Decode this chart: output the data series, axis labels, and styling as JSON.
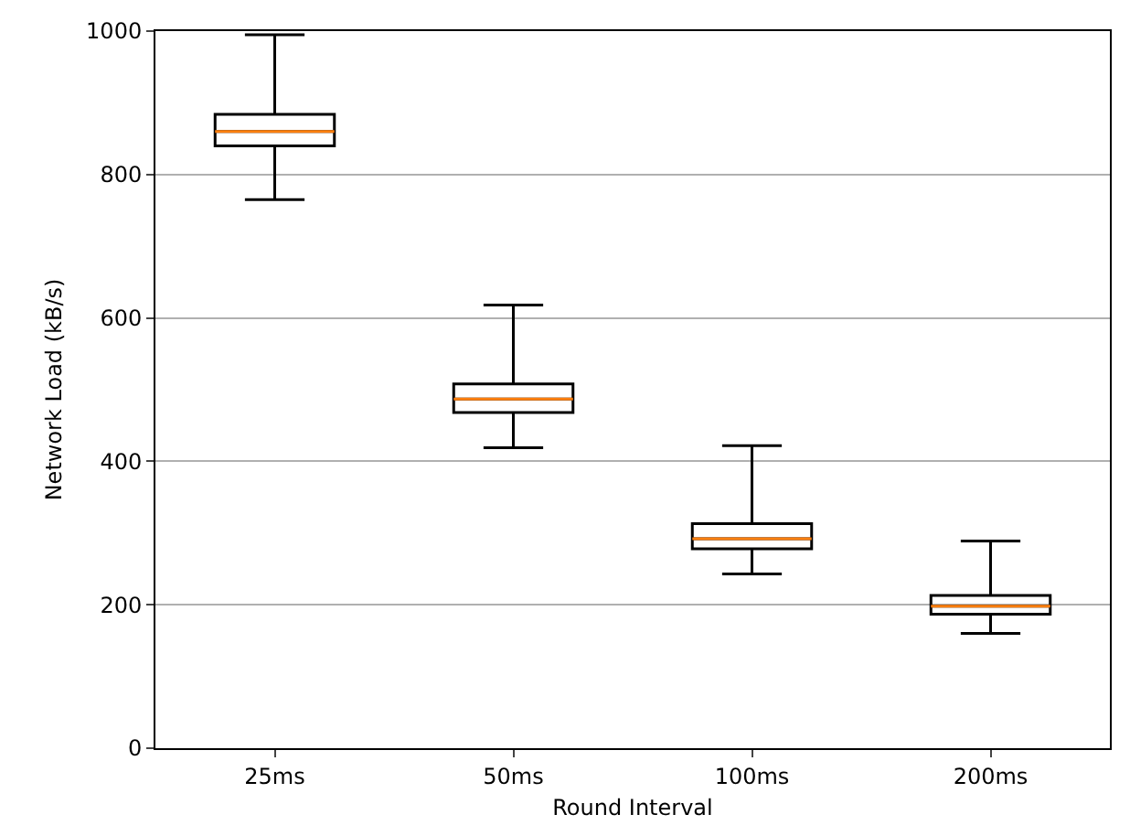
{
  "chart_data": {
    "type": "box",
    "xlabel": "Round Interval",
    "ylabel": "Network Load (kB/s)",
    "categories": [
      "25ms",
      "50ms",
      "100ms",
      "200ms"
    ],
    "series": [
      {
        "color": "#000000",
        "boxes": [
          {
            "low": 765,
            "q1": 840,
            "median": 860,
            "q3": 884,
            "high": 995
          },
          {
            "low": 419,
            "q1": 468,
            "median": 487,
            "q3": 508,
            "high": 618
          },
          {
            "low": 243,
            "q1": 278,
            "median": 292,
            "q3": 313,
            "high": 422
          },
          {
            "low": 160,
            "q1": 187,
            "median": 198,
            "q3": 213,
            "high": 289
          }
        ]
      }
    ],
    "ylim": [
      0,
      1000
    ],
    "yticks": [
      0,
      200,
      400,
      600,
      800,
      1000
    ],
    "grid": "y"
  }
}
